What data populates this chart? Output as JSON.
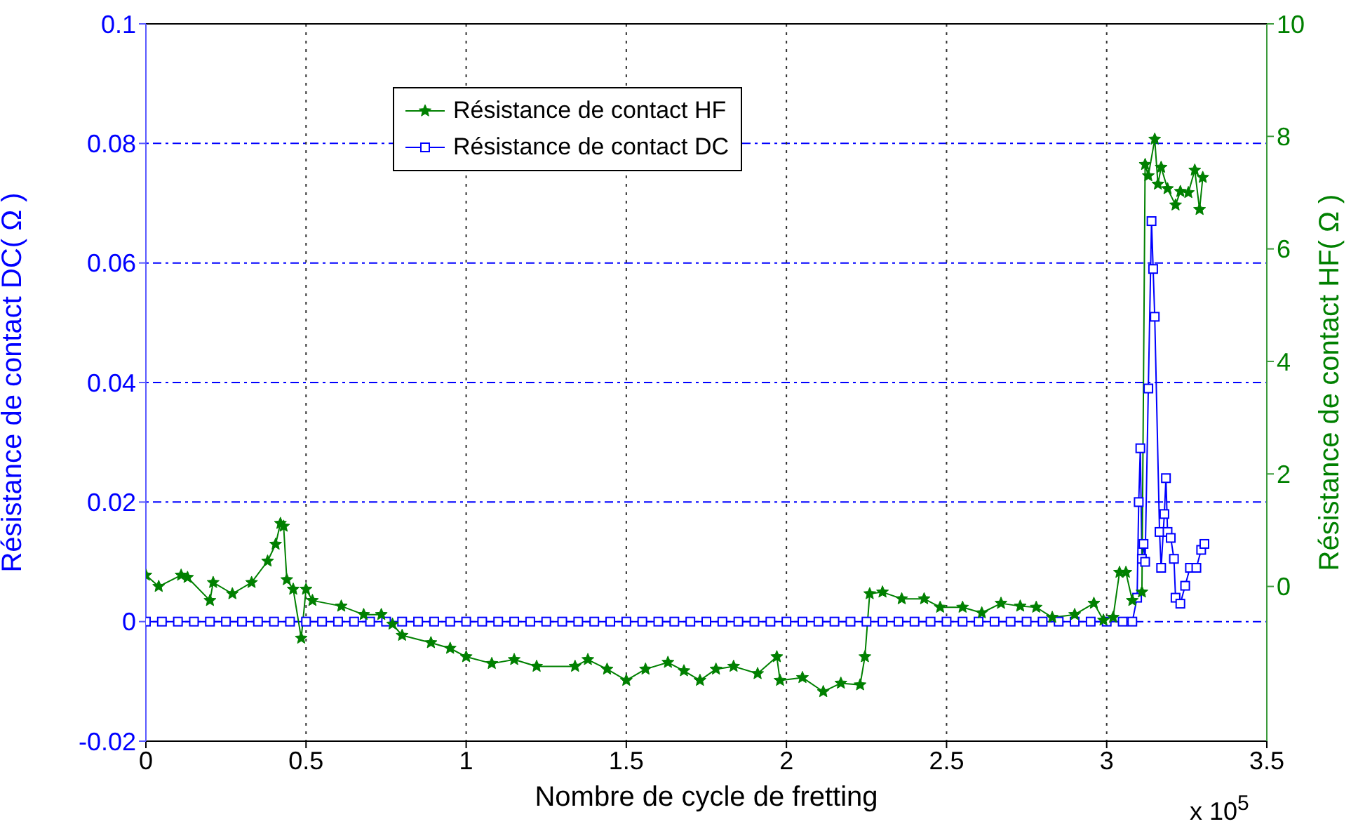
{
  "chart_data": {
    "type": "line",
    "xlabel": "Nombre de cycle de fretting",
    "ylabel": "Résistance de contact DC( Ω )",
    "y2label": "Résistance de contact HF( Ω )",
    "annotations": [
      "x 10$^{5}$"
    ],
    "xlim": [
      0,
      3.5
    ],
    "xticks": [
      0,
      0.5,
      1,
      1.5,
      2,
      2.5,
      3,
      3.5
    ],
    "ylim": [
      -0.02,
      0.1
    ],
    "yticks": [
      -0.02,
      0,
      0.02,
      0.04,
      0.06,
      0.08,
      0.1
    ],
    "y2lim": [
      -2.75,
      10
    ],
    "y2ticks": [
      0,
      2,
      4,
      6,
      8,
      10
    ],
    "grid": true,
    "legend": "top",
    "line_style": "solid",
    "series": [
      {
        "name": "Résistance de contact HF",
        "color": "#008000",
        "axis": "y2",
        "marker": "star",
        "x": [
          0,
          0.04,
          0.11,
          0.13,
          0.2,
          0.21,
          0.27,
          0.33,
          0.38,
          0.405,
          0.42,
          0.43,
          0.44,
          0.46,
          0.485,
          0.5,
          0.52,
          0.61,
          0.68,
          0.735,
          0.77,
          0.8,
          0.89,
          0.95,
          1.0,
          1.08,
          1.15,
          1.22,
          1.34,
          1.38,
          1.44,
          1.5,
          1.56,
          1.63,
          1.68,
          1.73,
          1.78,
          1.835,
          1.91,
          1.97,
          1.98,
          2.05,
          2.115,
          2.17,
          2.23,
          2.245,
          2.26,
          2.3,
          2.36,
          2.43,
          2.48,
          2.55,
          2.61,
          2.67,
          2.73,
          2.78,
          2.83,
          2.9,
          2.96,
          2.99,
          3.02,
          3.04,
          3.06,
          3.08,
          3.11,
          3.12,
          3.13,
          3.15,
          3.16,
          3.17,
          3.19,
          3.215,
          3.23,
          3.255,
          3.275,
          3.29,
          3.3
        ],
        "values": [
          0.2,
          0,
          0.2,
          0.16,
          -0.25,
          0.07,
          -0.13,
          0.07,
          0.45,
          0.75,
          1.12,
          1.07,
          0.12,
          -0.05,
          -0.92,
          -0.05,
          -0.25,
          -0.35,
          -0.5,
          -0.5,
          -0.67,
          -0.87,
          -1,
          -1.1,
          -1.25,
          -1.37,
          -1.3,
          -1.42,
          -1.42,
          -1.3,
          -1.47,
          -1.67,
          -1.47,
          -1.35,
          -1.5,
          -1.67,
          -1.47,
          -1.42,
          -1.55,
          -1.25,
          -1.67,
          -1.62,
          -1.87,
          -1.72,
          -1.75,
          -1.25,
          -0.13,
          -0.1,
          -0.22,
          -0.22,
          -0.37,
          -0.37,
          -0.47,
          -0.3,
          -0.35,
          -0.37,
          -0.55,
          -0.5,
          -0.3,
          -0.6,
          -0.55,
          0.25,
          0.25,
          -0.25,
          -0.1,
          7.5,
          7.3,
          7.95,
          7.15,
          7.45,
          7.07,
          6.78,
          7.02,
          7,
          7.4,
          6.7,
          7.27
        ]
      },
      {
        "name": "Résistance de contact DC",
        "color": "#0000ff",
        "marker": "square",
        "x": [
          0,
          0.05,
          0.1,
          0.15,
          0.2,
          0.25,
          0.3,
          0.35,
          0.4,
          0.45,
          0.5,
          0.55,
          0.6,
          0.65,
          0.7,
          0.75,
          0.8,
          0.85,
          0.9,
          0.95,
          1,
          1.05,
          1.1,
          1.15,
          1.2,
          1.25,
          1.3,
          1.35,
          1.4,
          1.45,
          1.5,
          1.55,
          1.6,
          1.65,
          1.7,
          1.75,
          1.8,
          1.85,
          1.9,
          1.95,
          2,
          2.05,
          2.1,
          2.15,
          2.2,
          2.25,
          2.3,
          2.35,
          2.4,
          2.45,
          2.5,
          2.55,
          2.6,
          2.65,
          2.7,
          2.75,
          2.8,
          2.85,
          2.9,
          2.95,
          3,
          3.05,
          3.08,
          3.095,
          3.1,
          3.105,
          3.11,
          3.115,
          3.12,
          3.13,
          3.14,
          3.145,
          3.15,
          3.165,
          3.17,
          3.18,
          3.185,
          3.19,
          3.2,
          3.21,
          3.215,
          3.23,
          3.245,
          3.26,
          3.28,
          3.295,
          3.305
        ],
        "values": [
          0,
          0,
          0,
          0,
          0,
          0,
          0,
          0,
          0,
          0,
          0,
          0,
          0,
          0,
          0,
          0,
          0,
          0,
          0,
          0,
          0,
          0,
          0,
          0,
          0,
          0,
          0,
          0,
          0,
          0,
          0,
          0,
          0,
          0,
          0,
          0,
          0,
          0,
          0,
          0,
          0,
          0,
          0,
          0,
          0,
          0,
          0,
          0,
          0,
          0,
          0,
          0,
          0,
          0,
          0,
          0,
          0,
          0,
          0,
          0,
          0,
          0,
          0,
          0.004,
          0.02,
          0.029,
          0.0105,
          0.013,
          0.01,
          0.039,
          0.067,
          0.059,
          0.051,
          0.015,
          0.009,
          0.018,
          0.024,
          0.015,
          0.014,
          0.0105,
          0.004,
          0.003,
          0.006,
          0.009,
          0.009,
          0.012,
          0.013
        ]
      }
    ]
  }
}
